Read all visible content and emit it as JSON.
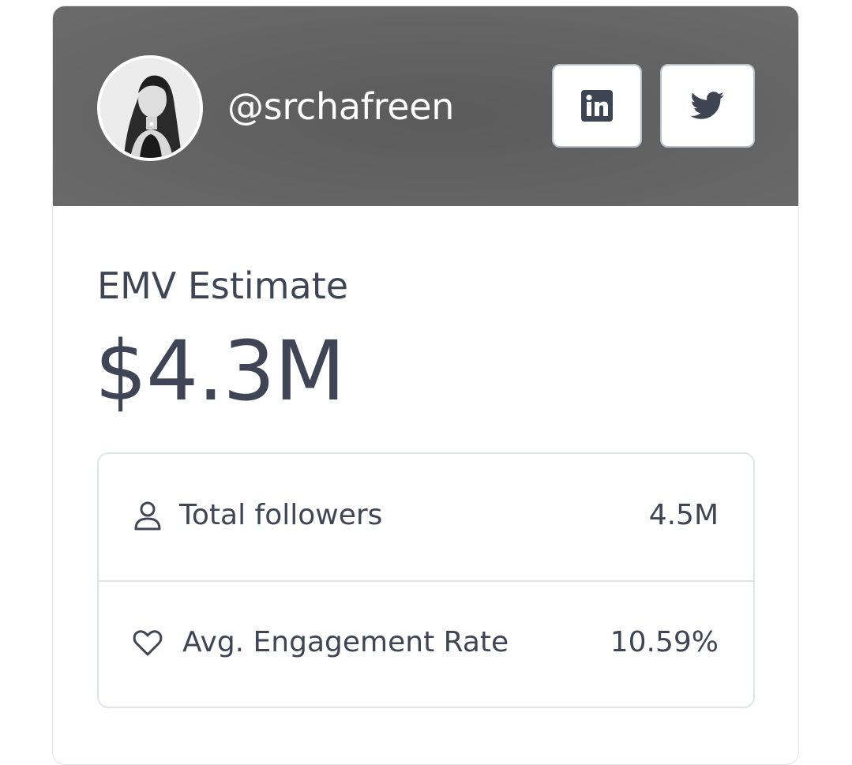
{
  "profile": {
    "handle": "@srchafreen",
    "avatar_icon": "profile-photo"
  },
  "socials": [
    {
      "name": "LinkedIn",
      "icon": "linkedin-icon"
    },
    {
      "name": "Twitter",
      "icon": "twitter-icon"
    }
  ],
  "emv": {
    "label": "EMV Estimate",
    "value": "$4.3M"
  },
  "stats": [
    {
      "icon": "user-icon",
      "label": "Total followers",
      "value": "4.5M"
    },
    {
      "icon": "heart-icon",
      "label": "Avg. Engagement Rate",
      "value": "10.59%"
    }
  ],
  "colors": {
    "header_bg": "#646464",
    "text": "#3f4555",
    "border": "#dfe5ea",
    "button_border": "#b9bfca"
  }
}
